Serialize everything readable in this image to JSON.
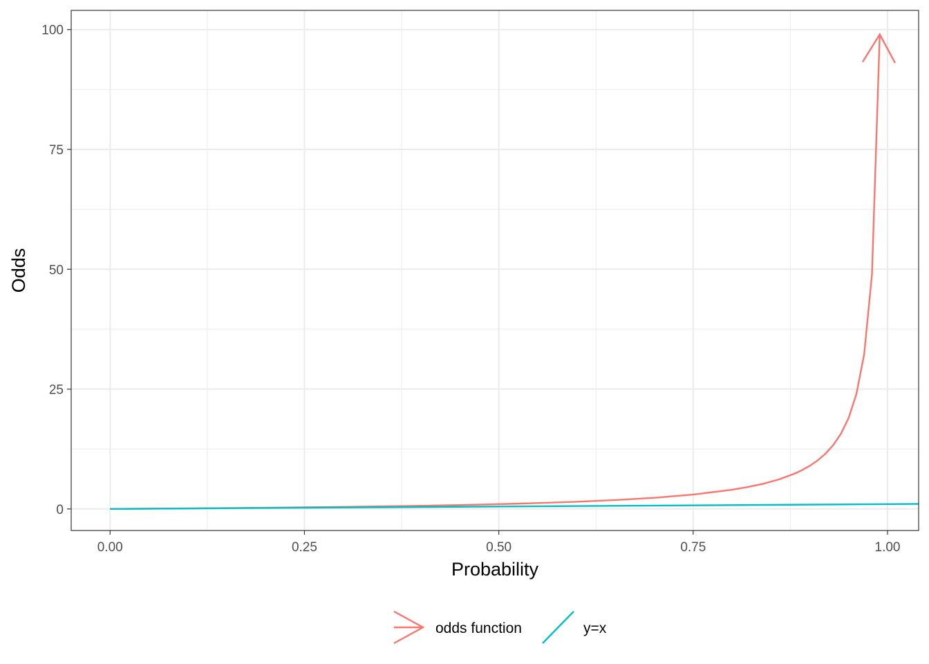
{
  "chart_data": {
    "type": "line",
    "xlabel": "Probability",
    "ylabel": "Odds",
    "xlim": [
      -0.05,
      1.04
    ],
    "ylim": [
      -4.5,
      104
    ],
    "x_ticks": [
      0,
      0.25,
      0.5,
      0.75,
      1
    ],
    "x_tick_labels": [
      "0.00",
      "0.25",
      "0.50",
      "0.75",
      "1.00"
    ],
    "y_ticks": [
      0,
      25,
      50,
      75,
      100
    ],
    "y_tick_labels": [
      "0",
      "25",
      "50",
      "75",
      "100"
    ],
    "grid": true,
    "legend_position": "bottom",
    "series": [
      {
        "name": "odds function",
        "color": "#F8766D",
        "arrow_end": true,
        "x": [
          0,
          0.05,
          0.1,
          0.15,
          0.2,
          0.25,
          0.3,
          0.35,
          0.4,
          0.45,
          0.5,
          0.55,
          0.6,
          0.65,
          0.7,
          0.75,
          0.8,
          0.82,
          0.84,
          0.86,
          0.88,
          0.89,
          0.9,
          0.91,
          0.92,
          0.93,
          0.94,
          0.95,
          0.96,
          0.97,
          0.98,
          0.99
        ],
        "y": [
          0,
          0.053,
          0.111,
          0.176,
          0.25,
          0.333,
          0.429,
          0.538,
          0.667,
          0.818,
          1,
          1.222,
          1.5,
          1.857,
          2.333,
          3,
          4,
          4.556,
          5.25,
          6.143,
          7.333,
          8.091,
          9,
          10.111,
          11.5,
          13.286,
          15.667,
          19,
          24,
          32.333,
          49,
          99
        ]
      },
      {
        "name": "y=x",
        "color": "#00BFC4",
        "arrow_end": false,
        "x": [
          0,
          1.04
        ],
        "y": [
          0,
          1.04
        ]
      }
    ]
  }
}
